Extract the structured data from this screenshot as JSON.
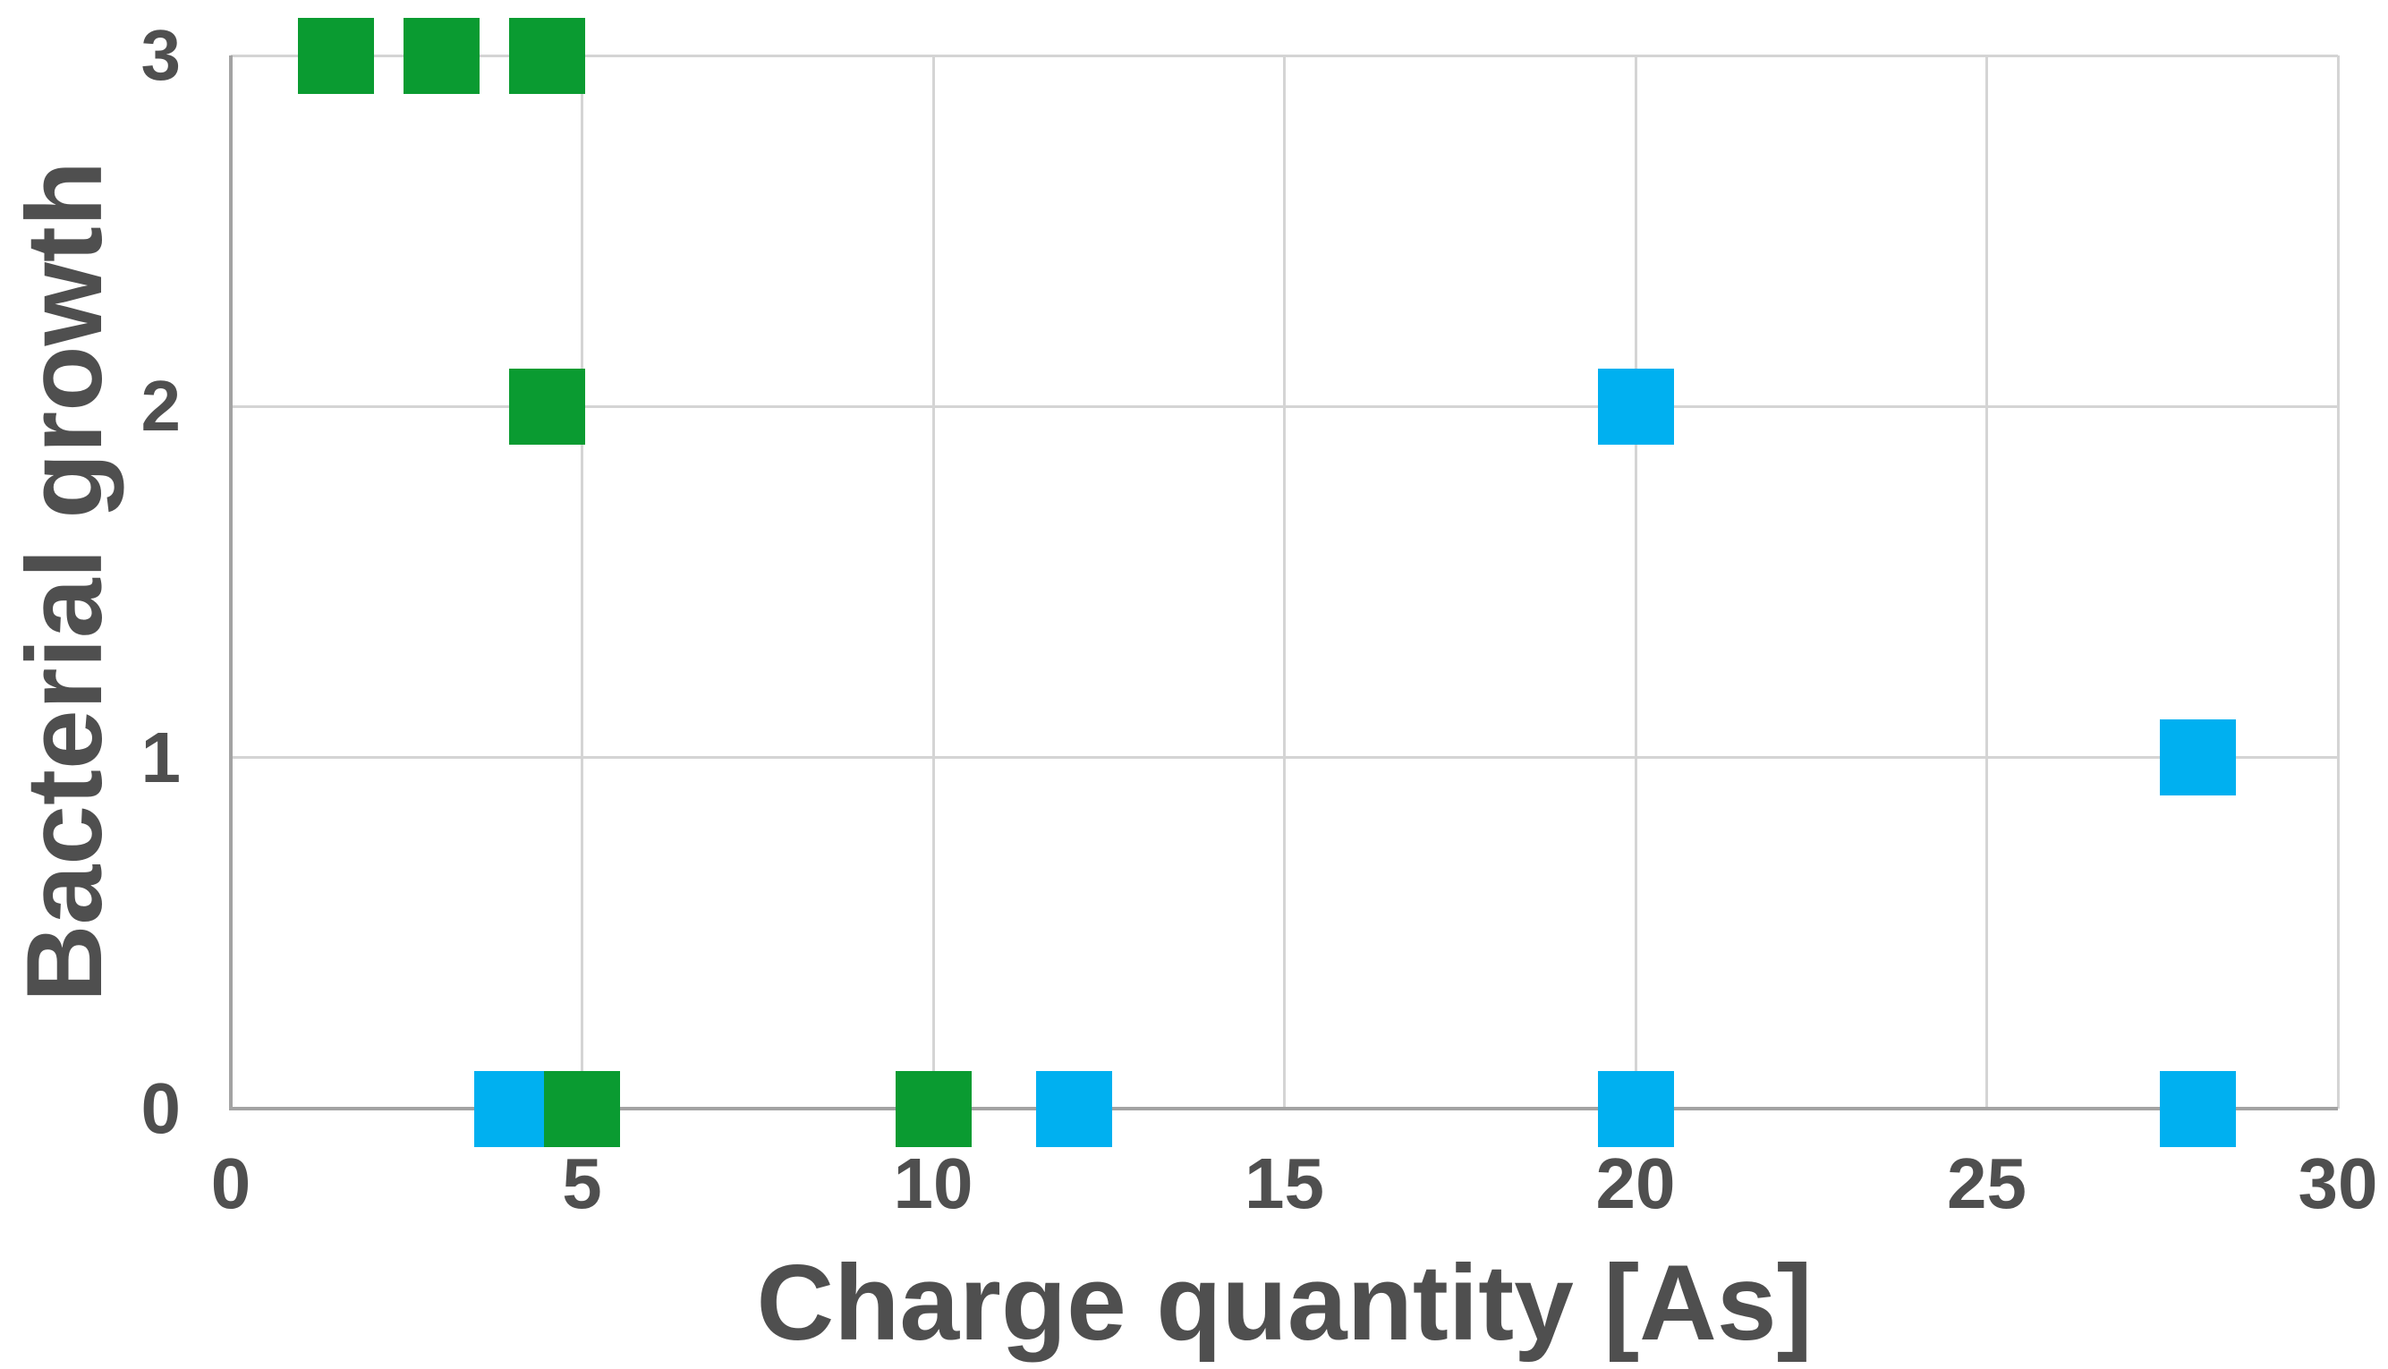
{
  "chart_data": {
    "type": "scatter",
    "title": "",
    "xlabel": "Charge quantity [As]",
    "ylabel": "Bacterial growth",
    "xlim": [
      0,
      30
    ],
    "ylim": [
      0,
      3
    ],
    "x_ticks": [
      0,
      5,
      10,
      15,
      20,
      25,
      30
    ],
    "y_ticks": [
      0,
      1,
      2,
      3
    ],
    "grid": true,
    "legend_position": "none",
    "marker_shape": "square",
    "series": [
      {
        "name": "blue-series",
        "color": "#00B0F0",
        "points": [
          [
            4,
            0
          ],
          [
            12,
            0
          ],
          [
            20,
            0
          ],
          [
            20,
            2
          ],
          [
            28,
            0
          ],
          [
            28,
            1
          ]
        ]
      },
      {
        "name": "green-series",
        "color": "#0A9B31",
        "points": [
          [
            1.5,
            3
          ],
          [
            3,
            3
          ],
          [
            4.5,
            3
          ],
          [
            4.5,
            2
          ],
          [
            5,
            0
          ],
          [
            10,
            0
          ]
        ]
      }
    ],
    "gridline_color": "#d4d4d4",
    "axis_color": "#a3a3a3",
    "text_color": "#4f4f4f",
    "background_color": "#ffffff"
  }
}
